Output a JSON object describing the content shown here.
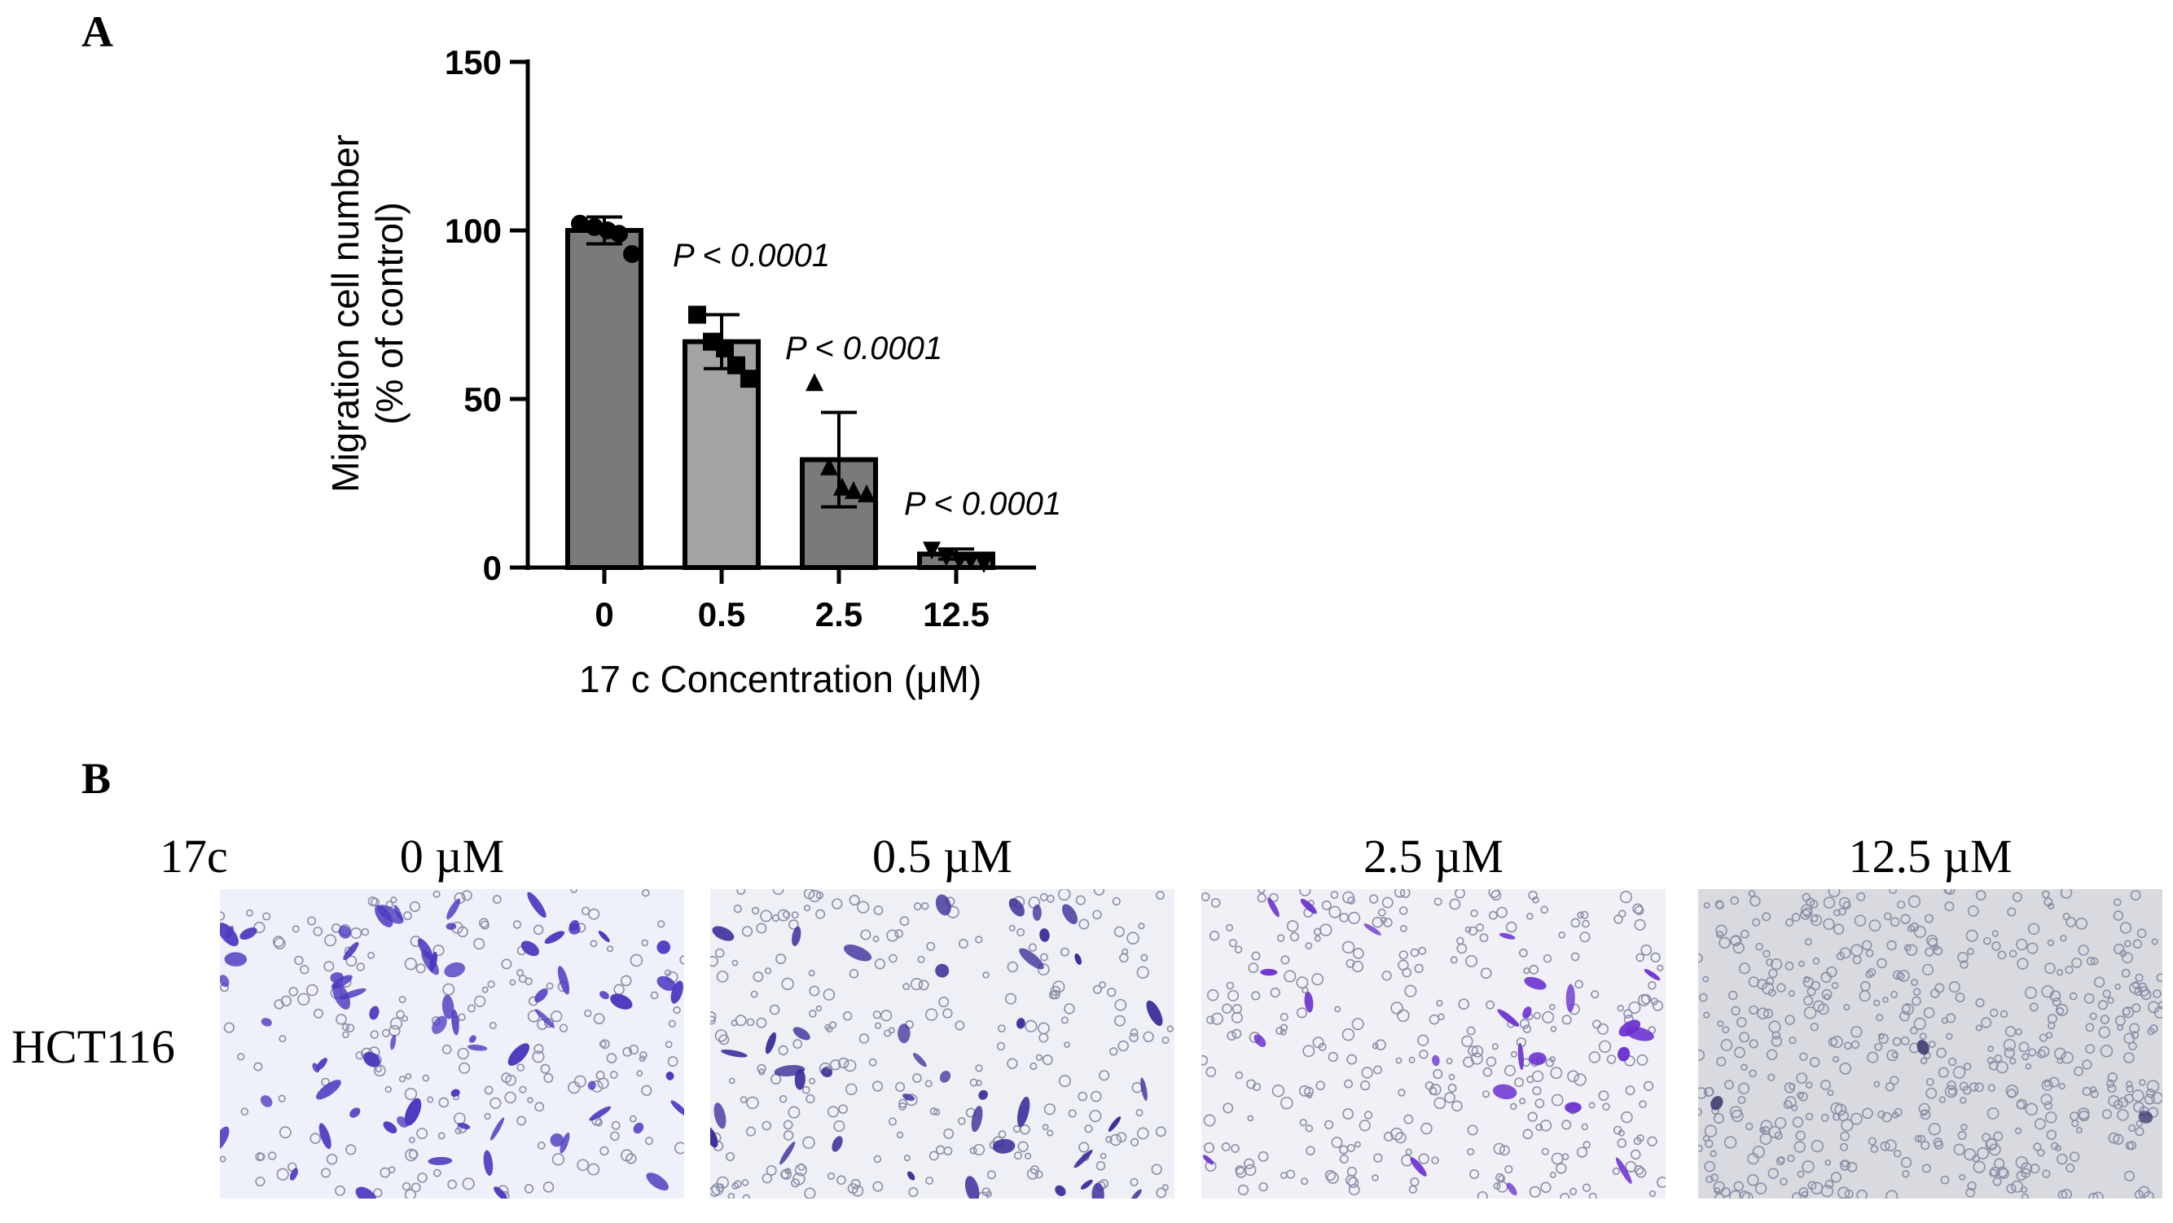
{
  "panel_a": {
    "letter": "A"
  },
  "panel_b": {
    "letter": "B",
    "compound_label": "17c",
    "cell_line_label": "HCT116",
    "concentrations": [
      "0 µM",
      "0.5 µM",
      "2.5 µM",
      "12.5 µM"
    ],
    "images": [
      {
        "stained_cell_density": "high",
        "stain_color": "#4a3ac0",
        "background": "#eef0fa"
      },
      {
        "stained_cell_density": "moderate",
        "stain_color": "#3c2f9a",
        "background": "#eef0f6"
      },
      {
        "stained_cell_density": "low",
        "stain_color": "#6a2fd0",
        "background": "#f0f0f6"
      },
      {
        "stained_cell_density": "very low",
        "stain_color": "#3a3a70",
        "background": "#d9dadf"
      }
    ]
  },
  "chart_data": {
    "type": "bar",
    "xlabel": "17 c Concentration (μM)",
    "ylabel": [
      "Migration cell number",
      "(% of control)"
    ],
    "categories": [
      "0",
      "0.5",
      "2.5",
      "12.5"
    ],
    "values": [
      100,
      67,
      32,
      4
    ],
    "error": [
      4,
      8,
      14,
      1.5
    ],
    "ylim": [
      0,
      150
    ],
    "yticks": [
      0,
      50,
      100,
      150
    ],
    "bar_colors": [
      "#7a7a7a",
      "#a3a3a3",
      "#7a7a7a",
      "#7a7a7a"
    ],
    "markers": [
      "circle",
      "square",
      "triangle-up",
      "triangle-down"
    ],
    "points": [
      [
        102,
        101,
        100,
        99,
        93
      ],
      [
        75,
        67,
        65,
        60,
        56
      ],
      [
        55,
        30,
        24,
        23,
        22
      ],
      [
        5,
        3,
        2,
        2,
        1
      ]
    ],
    "annotations": [
      "P < 0.0001",
      "P < 0.0001",
      "P < 0.0001"
    ],
    "grid": false
  }
}
